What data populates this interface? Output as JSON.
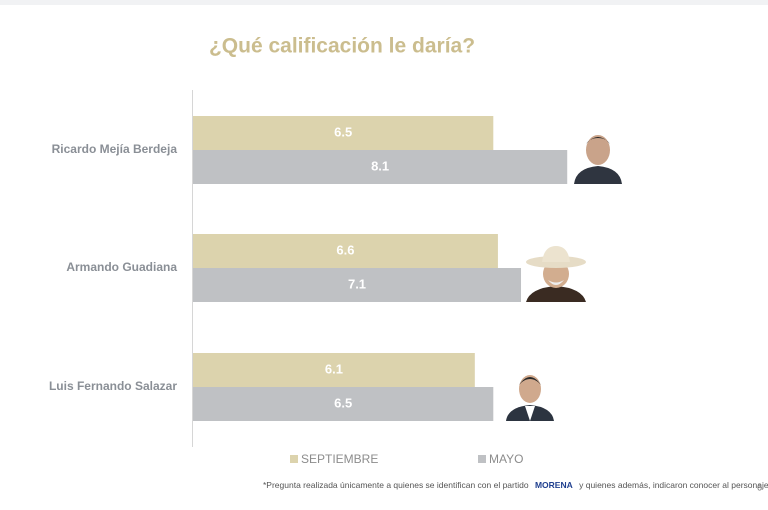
{
  "chart_data": {
    "type": "hbar",
    "title": "¿Qué calificación le daría?",
    "categories": [
      "Ricardo Mejía Berdeja",
      "Armando Guadiana",
      "Luis Fernando Salazar"
    ],
    "series": [
      {
        "name": "SEPTIEMBRE",
        "color": "#dcd3ad",
        "values": [
          6.5,
          6.6,
          6.1
        ]
      },
      {
        "name": "MAYO",
        "color": "#bfc1c4",
        "values": [
          8.1,
          7.1,
          6.5
        ]
      }
    ],
    "xlim": [
      0,
      10
    ],
    "legend": "bottom"
  },
  "footnote": {
    "before": "*Pregunta realizada únicamente a quienes se identifican con el partido",
    "party": "MORENA",
    "after": "y quienes además, indicaron conocer al personaje"
  },
  "page_number": "6"
}
